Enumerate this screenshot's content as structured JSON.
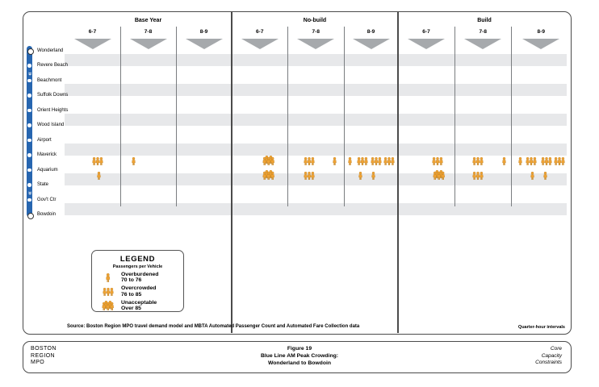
{
  "header": {
    "scenarios": [
      {
        "label": "Base Year",
        "hours": [
          "6-7",
          "7-8",
          "8-9"
        ]
      },
      {
        "label": "No-build",
        "hours": [
          "6-7",
          "7-8",
          "8-9"
        ]
      },
      {
        "label": "Build",
        "hours": [
          "6-7",
          "7-8",
          "8-9"
        ]
      }
    ]
  },
  "line": {
    "name": "Blue Line",
    "color": "#2766b0",
    "stations": [
      "Wonderland",
      "Revere Beach",
      "Beachmont",
      "Suffolk Downs",
      "Orient Heights",
      "Wood Island",
      "Airport",
      "Maverick",
      "Aquarium",
      "State",
      "Gov't Ctr",
      "Bowdoin"
    ],
    "breaks_after": [
      "Revere Beach",
      "State"
    ]
  },
  "legend": {
    "title": "LEGEND",
    "subtitle": "Passengers per Vehicle",
    "items": [
      {
        "level": "overburdened",
        "label": "Overburdened",
        "range": "70 to 76"
      },
      {
        "level": "overcrowded",
        "label": "Overcrowded",
        "range": "76 to 85"
      },
      {
        "level": "unacceptable",
        "label": "Unacceptable",
        "range": "Over 85"
      }
    ]
  },
  "notes": {
    "source": "Source: Boston Region MPO travel demand model and MBTA Automated Passenger Count and Automated Fare Collection data",
    "interval": "Quarter-hour intervals"
  },
  "footer": {
    "org_lines": [
      "BOSTON",
      "REGION",
      "MPO"
    ],
    "title_lines": [
      "Figure 19",
      "Blue Line AM Peak Crowding:",
      "Wonderland to Bowdoin"
    ],
    "tagline_lines": [
      "Core",
      "Capacity",
      "Constraints"
    ]
  },
  "colors": {
    "icon_fill": "#f0a232",
    "icon_stroke": "#b87a18",
    "band": "#e7e8ea",
    "triangle": "#a6a9ac",
    "line_blue": "#2766b0",
    "divider_dark": "#4b4b4b",
    "divider_light": "#7a7d80"
  },
  "crowding": [
    {
      "scenario": "Base Year",
      "rows": [
        {
          "from": "Maverick",
          "to": "Aquarium",
          "icons": [
            {
              "hour": "6-7",
              "pos": 0.59,
              "level": "overcrowded"
            },
            {
              "hour": "7-8",
              "pos": 0.24,
              "level": "overburdened"
            }
          ]
        },
        {
          "from": "Aquarium",
          "to": "State",
          "icons": [
            {
              "hour": "6-7",
              "pos": 0.62,
              "level": "overburdened"
            }
          ]
        }
      ]
    },
    {
      "scenario": "No-build",
      "rows": [
        {
          "from": "Maverick",
          "to": "Aquarium",
          "icons": [
            {
              "hour": "6-7",
              "pos": 0.66,
              "level": "unacceptable"
            },
            {
              "hour": "7-8",
              "pos": 0.38,
              "level": "overcrowded"
            },
            {
              "hour": "7-8",
              "pos": 0.84,
              "level": "overburdened"
            },
            {
              "hour": "8-9",
              "pos": 0.11,
              "level": "overburdened"
            },
            {
              "hour": "8-9",
              "pos": 0.34,
              "level": "overcrowded"
            },
            {
              "hour": "8-9",
              "pos": 0.59,
              "level": "overcrowded"
            },
            {
              "hour": "8-9",
              "pos": 0.83,
              "level": "overcrowded"
            }
          ]
        },
        {
          "from": "Aquarium",
          "to": "State",
          "icons": [
            {
              "hour": "6-7",
              "pos": 0.66,
              "level": "unacceptable"
            },
            {
              "hour": "7-8",
              "pos": 0.38,
              "level": "overcrowded"
            },
            {
              "hour": "8-9",
              "pos": 0.31,
              "level": "overburdened"
            },
            {
              "hour": "8-9",
              "pos": 0.55,
              "level": "overburdened"
            }
          ]
        }
      ]
    },
    {
      "scenario": "Build",
      "rows": [
        {
          "from": "Maverick",
          "to": "Aquarium",
          "icons": [
            {
              "hour": "6-7",
              "pos": 0.7,
              "level": "overcrowded"
            },
            {
              "hour": "7-8",
              "pos": 0.41,
              "level": "overcrowded"
            },
            {
              "hour": "7-8",
              "pos": 0.87,
              "level": "overburdened"
            },
            {
              "hour": "8-9",
              "pos": 0.15,
              "level": "overburdened"
            },
            {
              "hour": "8-9",
              "pos": 0.34,
              "level": "overcrowded"
            },
            {
              "hour": "8-9",
              "pos": 0.59,
              "level": "overcrowded"
            },
            {
              "hour": "8-9",
              "pos": 0.81,
              "level": "overcrowded"
            }
          ]
        },
        {
          "from": "Aquarium",
          "to": "State",
          "icons": [
            {
              "hour": "6-7",
              "pos": 0.73,
              "level": "unacceptable"
            },
            {
              "hour": "7-8",
              "pos": 0.41,
              "level": "overcrowded"
            },
            {
              "hour": "8-9",
              "pos": 0.35,
              "level": "overburdened"
            },
            {
              "hour": "8-9",
              "pos": 0.57,
              "level": "overburdened"
            }
          ]
        }
      ]
    }
  ]
}
